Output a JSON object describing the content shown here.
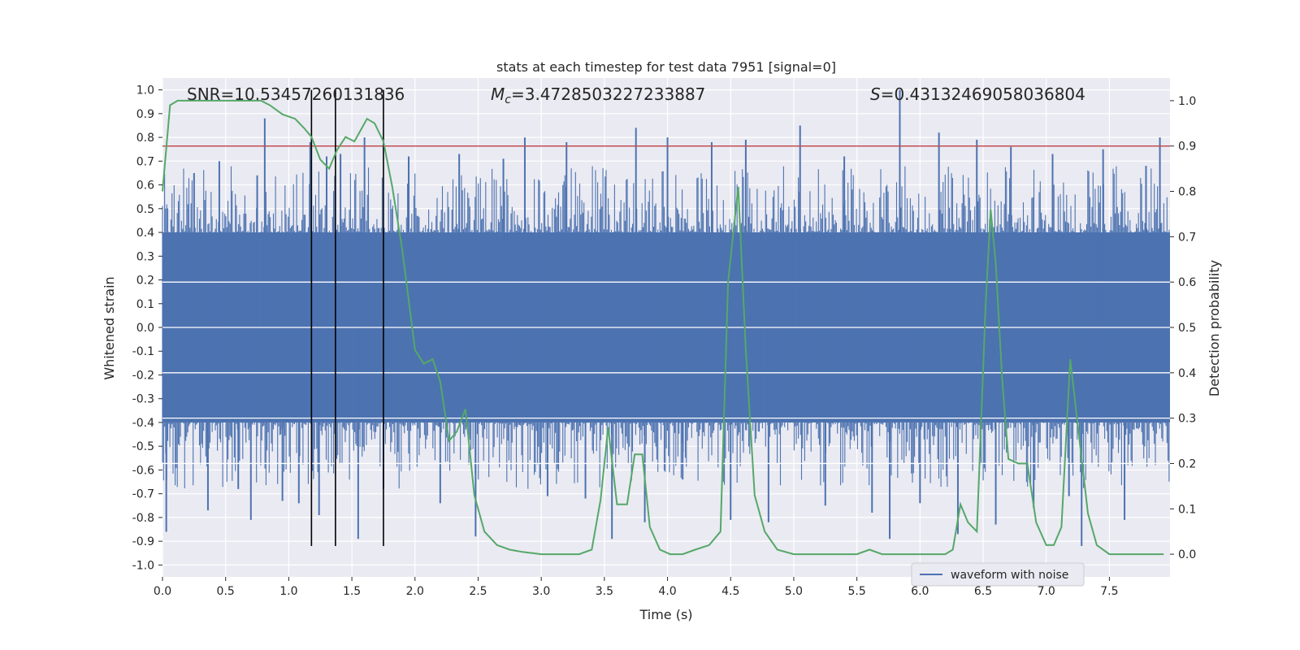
{
  "chart_data": {
    "type": "line",
    "title": "stats at each timestep for test data 7951 [signal=0]",
    "xlabel": "Time (s)",
    "ylabel_left": "Whitened strain",
    "ylabel_right": "Detection probability",
    "xlim": [
      0.0,
      7.98
    ],
    "ylim_left": [
      -1.05,
      1.05
    ],
    "ylim_right": [
      -0.05,
      1.05
    ],
    "xticks": [
      "0.0",
      "0.5",
      "1.0",
      "1.5",
      "2.0",
      "2.5",
      "3.0",
      "3.5",
      "4.0",
      "4.5",
      "5.0",
      "5.5",
      "6.0",
      "6.5",
      "7.0",
      "7.5"
    ],
    "xtick_values": [
      0.0,
      0.5,
      1.0,
      1.5,
      2.0,
      2.5,
      3.0,
      3.5,
      4.0,
      4.5,
      5.0,
      5.5,
      6.0,
      6.5,
      7.0,
      7.5
    ],
    "yticks_left": [
      "-1.0",
      "-0.9",
      "-0.8",
      "-0.7",
      "-0.6",
      "-0.5",
      "-0.4",
      "-0.3",
      "-0.2",
      "-0.1",
      "0.0",
      "0.1",
      "0.2",
      "0.3",
      "0.4",
      "0.5",
      "0.6",
      "0.7",
      "0.8",
      "0.9",
      "1.0"
    ],
    "ytick_values_left": [
      -1.0,
      -0.9,
      -0.8,
      -0.7,
      -0.6,
      -0.5,
      -0.4,
      -0.3,
      -0.2,
      -0.1,
      0.0,
      0.1,
      0.2,
      0.3,
      0.4,
      0.5,
      0.6,
      0.7,
      0.8,
      0.9,
      1.0
    ],
    "yticks_right": [
      "0.0",
      "0.1",
      "0.2",
      "0.3",
      "0.4",
      "0.5",
      "0.6",
      "0.7",
      "0.8",
      "0.9",
      "1.0"
    ],
    "ytick_values_right": [
      0.0,
      0.1,
      0.2,
      0.3,
      0.4,
      0.5,
      0.6,
      0.7,
      0.8,
      0.9,
      1.0
    ],
    "annotations": {
      "snr": "SNR=10.53457260131836",
      "mc_symbol": "M",
      "mc_sub": "c",
      "mc_value": "=3.4728503227233887",
      "s_symbol": "S",
      "s_value": "=0.43132469058036804"
    },
    "legend": {
      "label": "waveform with noise",
      "placement": "lower-right"
    },
    "threshold_line": {
      "y_right": 0.9,
      "color": "#c44e52"
    },
    "vertical_lines": {
      "x": [
        1.18,
        1.37,
        1.75
      ],
      "y_from": -0.92,
      "y_to": 1.0
    },
    "waveform_series": {
      "name": "waveform with noise",
      "color": "#4c72b0",
      "t_start": 0.0,
      "t_end": 7.98,
      "band_level": 0.4,
      "spikes": [
        {
          "x": 0.03,
          "y": -0.86
        },
        {
          "x": 0.25,
          "y": 0.65
        },
        {
          "x": 0.36,
          "y": -0.77
        },
        {
          "x": 0.45,
          "y": 0.7
        },
        {
          "x": 0.6,
          "y": -0.68
        },
        {
          "x": 0.7,
          "y": -0.81
        },
        {
          "x": 0.75,
          "y": 0.64
        },
        {
          "x": 0.81,
          "y": 0.88
        },
        {
          "x": 0.95,
          "y": -0.73
        },
        {
          "x": 1.08,
          "y": -0.74
        },
        {
          "x": 1.17,
          "y": 0.78
        },
        {
          "x": 1.24,
          "y": -0.79
        },
        {
          "x": 1.3,
          "y": 0.72
        },
        {
          "x": 1.41,
          "y": 0.73
        },
        {
          "x": 1.55,
          "y": -0.89
        },
        {
          "x": 1.6,
          "y": 0.8
        },
        {
          "x": 1.75,
          "y": -0.68
        },
        {
          "x": 1.95,
          "y": 0.72
        },
        {
          "x": 2.2,
          "y": -0.74
        },
        {
          "x": 2.35,
          "y": 0.73
        },
        {
          "x": 2.48,
          "y": -0.88
        },
        {
          "x": 2.7,
          "y": 0.71
        },
        {
          "x": 2.87,
          "y": 0.8
        },
        {
          "x": 3.05,
          "y": -0.71
        },
        {
          "x": 3.2,
          "y": 0.78
        },
        {
          "x": 3.35,
          "y": -0.72
        },
        {
          "x": 3.56,
          "y": -0.89
        },
        {
          "x": 3.75,
          "y": 0.84
        },
        {
          "x": 3.82,
          "y": -0.82
        },
        {
          "x": 4.0,
          "y": 0.8
        },
        {
          "x": 4.12,
          "y": -0.64
        },
        {
          "x": 4.35,
          "y": 0.78
        },
        {
          "x": 4.5,
          "y": -0.81
        },
        {
          "x": 4.62,
          "y": 0.79
        },
        {
          "x": 4.8,
          "y": -0.82
        },
        {
          "x": 5.05,
          "y": 0.85
        },
        {
          "x": 5.25,
          "y": -0.75
        },
        {
          "x": 5.4,
          "y": 0.72
        },
        {
          "x": 5.62,
          "y": -0.78
        },
        {
          "x": 5.76,
          "y": -0.89
        },
        {
          "x": 5.84,
          "y": 1.0
        },
        {
          "x": 6.0,
          "y": -0.74
        },
        {
          "x": 6.15,
          "y": 0.82
        },
        {
          "x": 6.3,
          "y": -0.87
        },
        {
          "x": 6.45,
          "y": 0.79
        },
        {
          "x": 6.6,
          "y": -0.83
        },
        {
          "x": 6.72,
          "y": 0.76
        },
        {
          "x": 6.9,
          "y": -0.76
        },
        {
          "x": 7.05,
          "y": 0.73
        },
        {
          "x": 7.18,
          "y": -0.71
        },
        {
          "x": 7.28,
          "y": -0.92
        },
        {
          "x": 7.45,
          "y": 0.75
        },
        {
          "x": 7.62,
          "y": -0.81
        },
        {
          "x": 7.79,
          "y": 0.68
        },
        {
          "x": 7.9,
          "y": 0.8
        }
      ]
    },
    "probability_series": {
      "name": "Detection probability",
      "color": "#55a868",
      "x": [
        0.0,
        0.06,
        0.12,
        0.2,
        0.3,
        0.4,
        0.5,
        0.6,
        0.7,
        0.78,
        0.85,
        0.95,
        1.05,
        1.12,
        1.18,
        1.25,
        1.32,
        1.38,
        1.45,
        1.52,
        1.58,
        1.62,
        1.68,
        1.75,
        1.82,
        1.9,
        2.0,
        2.07,
        2.14,
        2.2,
        2.27,
        2.33,
        2.4,
        2.47,
        2.55,
        2.65,
        2.75,
        2.85,
        3.0,
        3.15,
        3.3,
        3.4,
        3.47,
        3.53,
        3.6,
        3.68,
        3.74,
        3.8,
        3.86,
        3.94,
        4.02,
        4.12,
        4.22,
        4.33,
        4.42,
        4.48,
        4.56,
        4.62,
        4.69,
        4.77,
        4.87,
        5.0,
        5.2,
        5.5,
        5.6,
        5.7,
        5.8,
        5.9,
        6.0,
        6.1,
        6.2,
        6.26,
        6.32,
        6.38,
        6.45,
        6.52,
        6.56,
        6.6,
        6.65,
        6.7,
        6.78,
        6.85,
        6.92,
        7.0,
        7.06,
        7.12,
        7.19,
        7.26,
        7.33,
        7.4,
        7.5,
        7.6,
        7.75,
        7.93
      ],
      "y": [
        0.8,
        0.99,
        1.0,
        1.0,
        1.0,
        1.0,
        1.0,
        1.0,
        1.0,
        1.0,
        0.99,
        0.97,
        0.96,
        0.94,
        0.92,
        0.87,
        0.85,
        0.89,
        0.92,
        0.91,
        0.94,
        0.96,
        0.95,
        0.91,
        0.81,
        0.67,
        0.45,
        0.42,
        0.43,
        0.38,
        0.25,
        0.27,
        0.32,
        0.13,
        0.05,
        0.02,
        0.01,
        0.005,
        0.0,
        0.0,
        0.0,
        0.01,
        0.12,
        0.28,
        0.11,
        0.11,
        0.22,
        0.22,
        0.06,
        0.01,
        0.0,
        0.0,
        0.01,
        0.02,
        0.05,
        0.6,
        0.81,
        0.45,
        0.13,
        0.05,
        0.01,
        0.0,
        0.0,
        0.0,
        0.01,
        0.0,
        0.0,
        0.0,
        0.0,
        0.0,
        0.0,
        0.01,
        0.11,
        0.07,
        0.05,
        0.55,
        0.76,
        0.64,
        0.39,
        0.21,
        0.2,
        0.2,
        0.07,
        0.02,
        0.02,
        0.06,
        0.43,
        0.26,
        0.09,
        0.02,
        0.0,
        0.0,
        0.0,
        0.0
      ]
    }
  }
}
